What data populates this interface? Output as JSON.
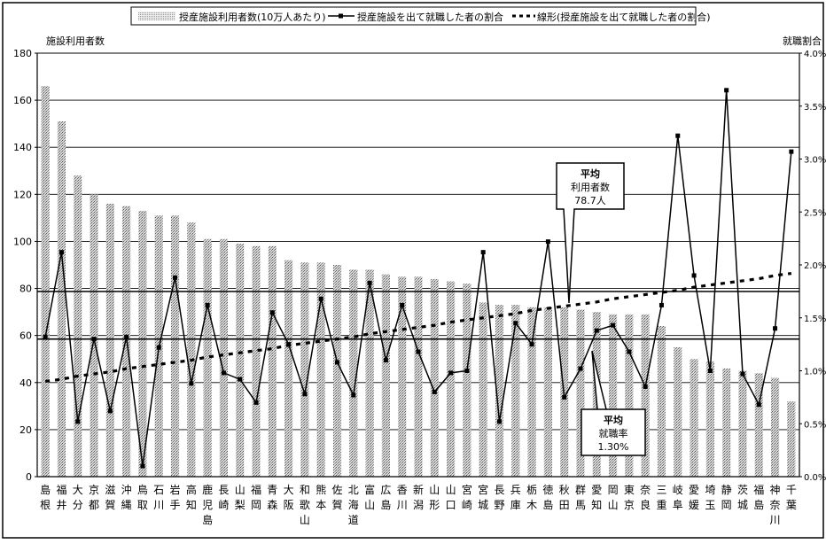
{
  "chart_data": {
    "type": "bar",
    "legend": {
      "placement": "top",
      "items": [
        {
          "label": "授産施設利用者数(10万人あたり)",
          "kind": "bar"
        },
        {
          "label": "授産施設を出て就職した者の割合",
          "kind": "line"
        },
        {
          "label": "線形(授産施設を出て就職した者の割合)",
          "kind": "trend"
        }
      ]
    },
    "left_axis": {
      "label": "施設利用者数",
      "min": 0,
      "max": 180,
      "ticks": [
        "0",
        "20",
        "40",
        "60",
        "80",
        "100",
        "120",
        "140",
        "160",
        "180"
      ]
    },
    "right_axis": {
      "label": "就職割合",
      "min": 0,
      "max": 4.0,
      "ticks": [
        "0.0%",
        "0.5%",
        "1.0%",
        "1.5%",
        "2.0%",
        "2.5%",
        "3.0%",
        "3.5%",
        "4.0%"
      ]
    },
    "categories": [
      [
        "島",
        "根"
      ],
      [
        "福",
        "井"
      ],
      [
        "大",
        "分"
      ],
      [
        "京",
        "都"
      ],
      [
        "滋",
        "賀"
      ],
      [
        "沖",
        "縄"
      ],
      [
        "鳥",
        "取"
      ],
      [
        "石",
        "川"
      ],
      [
        "岩",
        "手"
      ],
      [
        "高",
        "知"
      ],
      [
        "鹿",
        "児",
        "島"
      ],
      [
        "長",
        "崎"
      ],
      [
        "山",
        "梨"
      ],
      [
        "福",
        "岡"
      ],
      [
        "青",
        "森"
      ],
      [
        "大",
        "阪"
      ],
      [
        "和",
        "歌",
        "山"
      ],
      [
        "熊",
        "本"
      ],
      [
        "佐",
        "賀"
      ],
      [
        "北",
        "海",
        "道"
      ],
      [
        "富",
        "山"
      ],
      [
        "広",
        "島"
      ],
      [
        "香",
        "川"
      ],
      [
        "新",
        "潟"
      ],
      [
        "山",
        "形"
      ],
      [
        "山",
        "口"
      ],
      [
        "宮",
        "崎"
      ],
      [
        "宮",
        "城"
      ],
      [
        "長",
        "野"
      ],
      [
        "兵",
        "庫"
      ],
      [
        "栃",
        "木"
      ],
      [
        "徳",
        "島"
      ],
      [
        "秋",
        "田"
      ],
      [
        "群",
        "馬"
      ],
      [
        "愛",
        "知"
      ],
      [
        "岡",
        "山"
      ],
      [
        "東",
        "京"
      ],
      [
        "奈",
        "良"
      ],
      [
        "三",
        "重"
      ],
      [
        "岐",
        "阜"
      ],
      [
        "愛",
        "媛"
      ],
      [
        "埼",
        "玉"
      ],
      [
        "静",
        "岡"
      ],
      [
        "茨",
        "城"
      ],
      [
        "福",
        "島"
      ],
      [
        "神",
        "奈",
        "川"
      ],
      [
        "千",
        "葉"
      ]
    ],
    "series": [
      {
        "name": "授産施設利用者数(10万人あたり)",
        "axis": "left",
        "type": "bar",
        "values": [
          166,
          151,
          128,
          120,
          116,
          115,
          113,
          111,
          111,
          108,
          101,
          101,
          99,
          98,
          98,
          92,
          91,
          91,
          90,
          88,
          88,
          86,
          85,
          85,
          84,
          83,
          82,
          74,
          73,
          73,
          72,
          72,
          72,
          71,
          70,
          69,
          69,
          69,
          64,
          55,
          50,
          49,
          46,
          45,
          44,
          42,
          32
        ]
      },
      {
        "name": "授産施設を出て就職した者の割合",
        "axis": "right",
        "type": "line",
        "values": [
          1.32,
          2.12,
          0.52,
          1.3,
          0.62,
          1.32,
          0.1,
          1.22,
          1.88,
          0.88,
          1.62,
          0.98,
          0.92,
          0.7,
          1.55,
          1.25,
          0.78,
          1.68,
          1.08,
          0.77,
          1.83,
          1.1,
          1.62,
          1.18,
          0.8,
          0.98,
          1.0,
          2.12,
          0.52,
          1.45,
          1.25,
          2.22,
          0.75,
          1.02,
          1.38,
          1.43,
          1.18,
          0.85,
          1.62,
          3.22,
          1.9,
          1.0,
          3.65,
          0.97,
          0.68,
          1.4,
          3.07
        ]
      },
      {
        "name": "線形(授産施設を出て就職した者の割合)",
        "axis": "right",
        "type": "trend",
        "values": [
          0.9,
          0.92,
          0.95,
          0.97,
          0.99,
          1.02,
          1.04,
          1.06,
          1.08,
          1.1,
          1.13,
          1.15,
          1.17,
          1.19,
          1.21,
          1.24,
          1.26,
          1.28,
          1.3,
          1.32,
          1.35,
          1.37,
          1.39,
          1.41,
          1.43,
          1.46,
          1.48,
          1.5,
          1.52,
          1.54,
          1.57,
          1.59,
          1.61,
          1.63,
          1.65,
          1.68,
          1.7,
          1.72,
          1.74,
          1.76,
          1.79,
          1.81,
          1.83,
          1.85,
          1.87,
          1.9,
          1.92
        ]
      }
    ],
    "reference_lines": [
      {
        "axis": "left",
        "value": 78.7,
        "label": [
          "平均",
          "利用者数",
          "78.7人"
        ]
      },
      {
        "axis": "right",
        "value": 1.3,
        "label": [
          "平均",
          "就職率",
          "1.30%"
        ]
      }
    ],
    "grid": true
  }
}
